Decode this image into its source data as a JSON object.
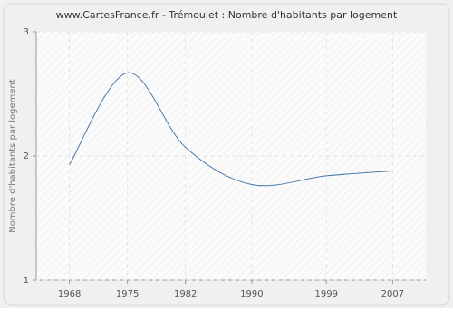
{
  "chart_data": {
    "type": "line",
    "title": "www.CartesFrance.fr - Trémoulet : Nombre d'habitants par logement",
    "y_label": "Nombre d'habitants par logement",
    "x": [
      1968,
      1975,
      1982,
      1990,
      1999,
      2007
    ],
    "series": [
      {
        "name": "Nombre d'habitants par logement",
        "color": "#4a7aa8",
        "values": [
          1.93,
          2.67,
          2.07,
          1.77,
          1.84,
          1.88
        ]
      }
    ],
    "xlim": [
      1964,
      2011
    ],
    "xticks": [
      1968,
      1975,
      1982,
      1990,
      1999,
      2007
    ],
    "ylim": [
      1,
      3
    ],
    "yticks": [
      1,
      2,
      3
    ],
    "grid": true
  }
}
